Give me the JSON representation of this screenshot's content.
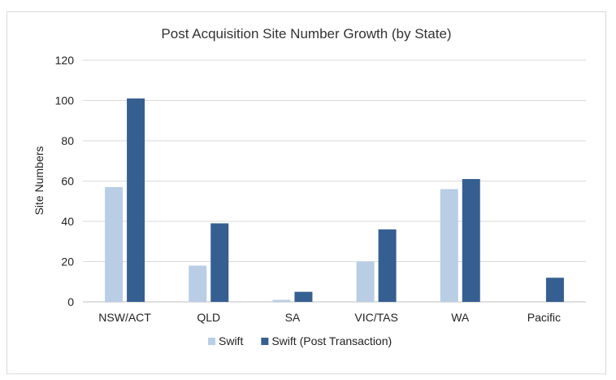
{
  "chart_data": {
    "type": "bar",
    "title": "Post Acquisition Site Number Growth (by State)",
    "xlabel": "",
    "ylabel": "Site Numbers",
    "ylim": [
      0,
      120
    ],
    "yticks": [
      0,
      20,
      40,
      60,
      80,
      100,
      120
    ],
    "grid": true,
    "legend_position": "bottom",
    "categories": [
      "NSW/ACT",
      "QLD",
      "SA",
      "VIC/TAS",
      "WA",
      "Pacific"
    ],
    "series": [
      {
        "name": "Swift",
        "color": "#b9cde5",
        "values": [
          57,
          18,
          1,
          20,
          56,
          0
        ]
      },
      {
        "name": "Swift (Post Transaction)",
        "color": "#355f91",
        "values": [
          101,
          39,
          5,
          36,
          61,
          12
        ]
      }
    ]
  }
}
